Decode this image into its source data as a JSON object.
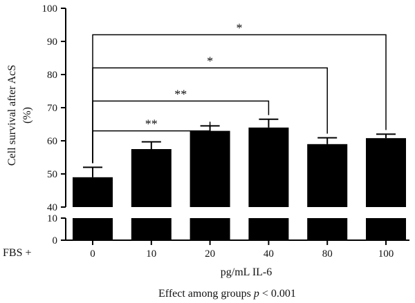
{
  "chart_data": {
    "type": "bar",
    "categories": [
      "0",
      "10",
      "20",
      "40",
      "80",
      "100"
    ],
    "values": [
      49,
      57.5,
      63,
      64,
      59,
      60.8
    ],
    "errors": [
      3,
      2.2,
      1.5,
      2.5,
      1.9,
      1.2
    ],
    "ylabel_line1": "Cell survival after AcS",
    "ylabel_line2": "(%)",
    "xlabel": "pg/mL IL-6",
    "x_prefix": "FBS +",
    "axis_break": true,
    "upper_range": [
      40,
      100
    ],
    "upper_ticks": [
      "40",
      "50",
      "60",
      "70",
      "80",
      "90",
      "100"
    ],
    "lower_range": [
      0,
      10
    ],
    "lower_ticks": [
      "0",
      "10"
    ],
    "bar_color": "#000000",
    "significance": [
      {
        "from": "0",
        "to": "20",
        "label": "**"
      },
      {
        "from": "0",
        "to": "40",
        "label": "**"
      },
      {
        "from": "0",
        "to": "80",
        "label": "*"
      },
      {
        "from": "0",
        "to": "100",
        "label": "*"
      }
    ],
    "footnote_prefix": "Effect among groups ",
    "footnote_p": "p",
    "footnote_suffix": " < 0.001"
  }
}
